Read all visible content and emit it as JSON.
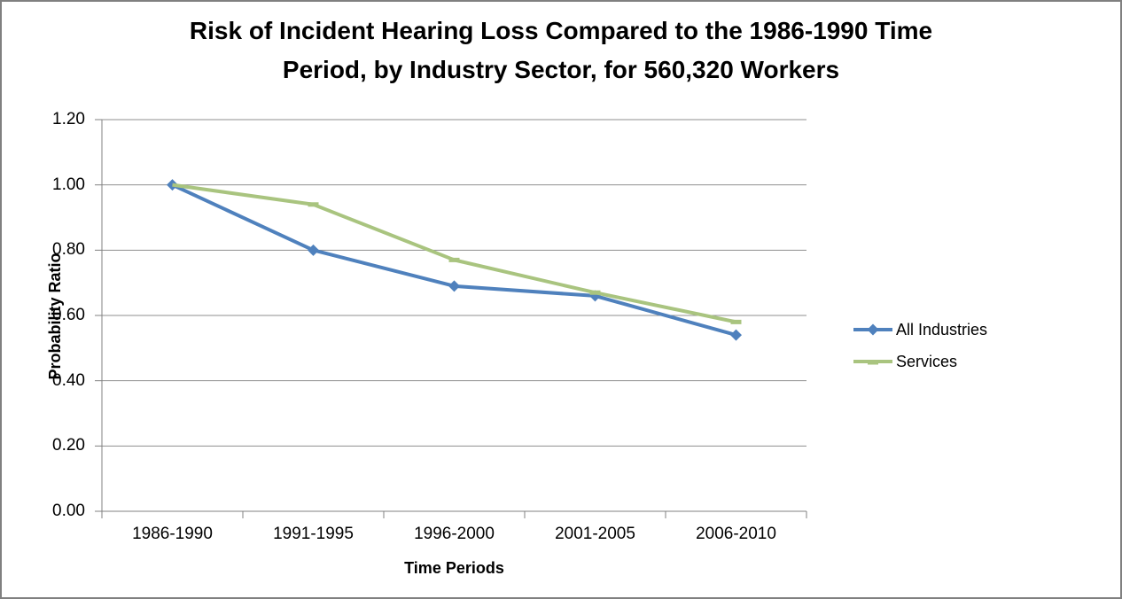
{
  "title": {
    "line1": "Risk of Incident Hearing Loss Compared to the 1986-1990 Time",
    "line2": "Period, by Industry Sector, for 560,320 Workers"
  },
  "chart_data": {
    "type": "line",
    "title": "Risk of Incident Hearing Loss Compared to the 1986-1990 Time Period, by Industry Sector, for 560,320 Workers",
    "categories": [
      "1986-1990",
      "1991-1995",
      "1996-2000",
      "2001-2005",
      "2006-2010"
    ],
    "series": [
      {
        "name": "All Industries",
        "color": "#4F81BD",
        "marker": "diamond",
        "values": [
          1.0,
          0.8,
          0.69,
          0.66,
          0.54
        ]
      },
      {
        "name": "Services",
        "color": "#A9C47F",
        "marker": "dash",
        "values": [
          1.0,
          0.94,
          0.77,
          0.67,
          0.58
        ]
      }
    ],
    "xlabel": "Time Periods",
    "ylabel": "Probability Ratio",
    "ylim": [
      0,
      1.2
    ],
    "y_ticks": [
      "0.00",
      "0.20",
      "0.40",
      "0.60",
      "0.80",
      "1.00",
      "1.20"
    ],
    "y_tick_values": [
      0,
      0.2,
      0.4,
      0.6,
      0.8,
      1.0,
      1.2
    ],
    "grid": true,
    "legend_position": "right"
  },
  "colors": {
    "background": "#FFFFFF",
    "frame_border": "#808080",
    "gridline": "#8F8F8F",
    "axis": "#808080",
    "text": "#000000"
  }
}
